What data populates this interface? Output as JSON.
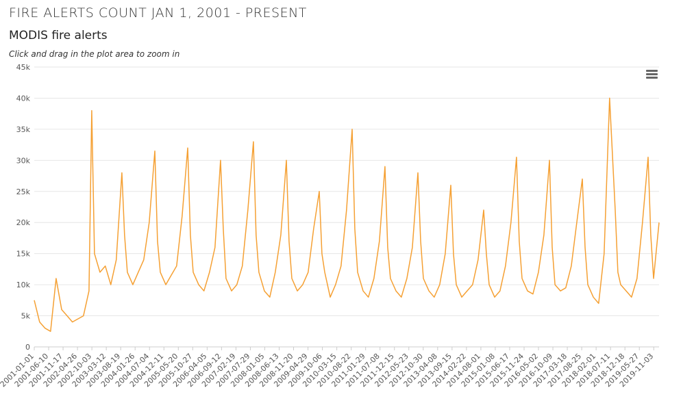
{
  "page": {
    "title": "FIRE ALERTS COUNT JAN 1, 2001 - PRESENT",
    "chart_title": "MODIS fire alerts",
    "hint": "Click and drag in the plot area to zoom in",
    "menu_icon": "hamburger-menu-icon"
  },
  "colors": {
    "series": "#f5a033",
    "grid": "#e6e6e6",
    "axis": "#cccccc",
    "text": "#333333"
  },
  "chart_data": {
    "type": "line",
    "title": "MODIS fire alerts",
    "xlabel": "",
    "ylabel": "",
    "ylim": [
      0,
      45000
    ],
    "y_ticks": [
      "0",
      "5k",
      "10k",
      "15k",
      "20k",
      "25k",
      "30k",
      "35k",
      "40k",
      "45k"
    ],
    "x_tick_labels": [
      "2001-01-01",
      "2001-06-10",
      "2001-11-17",
      "2002-04-26",
      "2002-10-03",
      "2003-03-12",
      "2003-08-19",
      "2004-01-26",
      "2004-07-04",
      "2004-12-11",
      "2005-05-20",
      "2005-10-27",
      "2006-04-05",
      "2006-09-12",
      "2007-02-19",
      "2007-07-29",
      "2008-01-05",
      "2008-06-13",
      "2008-11-20",
      "2009-04-29",
      "2009-10-06",
      "2010-03-15",
      "2010-08-22",
      "2011-01-29",
      "2011-07-08",
      "2011-12-15",
      "2012-05-23",
      "2012-10-30",
      "2013-04-08",
      "2013-09-15",
      "2014-02-22",
      "2014-08-01",
      "2015-01-08",
      "2015-06-17",
      "2015-11-24",
      "2016-05-02",
      "2016-10-09",
      "2017-03-18",
      "2017-08-25",
      "2018-02-01",
      "2018-07-11",
      "2018-12-18",
      "2019-05-27",
      "2019-11-03"
    ],
    "grid": true,
    "legend": "none",
    "series": [
      {
        "x": [
          "2001-01-01",
          "2001-03-01",
          "2001-05-01",
          "2001-07-01",
          "2001-09-01",
          "2001-11-01",
          "2002-01-01",
          "2002-03-01",
          "2002-05-01",
          "2002-07-01",
          "2002-09-01",
          "2002-10-01",
          "2002-11-01",
          "2003-01-01",
          "2003-03-01",
          "2003-05-01",
          "2003-07-01",
          "2003-09-01",
          "2003-10-01",
          "2003-11-01",
          "2004-01-01",
          "2004-03-01",
          "2004-05-01",
          "2004-07-01",
          "2004-09-01",
          "2004-10-01",
          "2004-11-01",
          "2005-01-01",
          "2005-03-01",
          "2005-05-01",
          "2005-07-01",
          "2005-09-01",
          "2005-10-01",
          "2005-11-01",
          "2006-01-01",
          "2006-03-01",
          "2006-05-01",
          "2006-07-01",
          "2006-09-01",
          "2006-10-01",
          "2006-11-01",
          "2007-01-01",
          "2007-03-01",
          "2007-05-01",
          "2007-07-01",
          "2007-09-01",
          "2007-10-01",
          "2007-11-01",
          "2008-01-01",
          "2008-03-01",
          "2008-05-01",
          "2008-07-01",
          "2008-09-01",
          "2008-10-01",
          "2008-11-01",
          "2009-01-01",
          "2009-03-01",
          "2009-05-01",
          "2009-07-01",
          "2009-09-01",
          "2009-10-01",
          "2009-11-01",
          "2010-01-01",
          "2010-03-01",
          "2010-05-01",
          "2010-07-01",
          "2010-09-01",
          "2010-10-01",
          "2010-11-01",
          "2011-01-01",
          "2011-03-01",
          "2011-05-01",
          "2011-07-01",
          "2011-09-01",
          "2011-10-01",
          "2011-11-01",
          "2012-01-01",
          "2012-03-01",
          "2012-05-01",
          "2012-07-01",
          "2012-09-01",
          "2012-10-01",
          "2012-11-01",
          "2013-01-01",
          "2013-03-01",
          "2013-05-01",
          "2013-07-01",
          "2013-09-01",
          "2013-10-01",
          "2013-11-01",
          "2014-01-01",
          "2014-03-01",
          "2014-05-01",
          "2014-07-01",
          "2014-09-01",
          "2014-10-01",
          "2014-11-01",
          "2015-01-01",
          "2015-03-01",
          "2015-05-01",
          "2015-07-01",
          "2015-09-01",
          "2015-10-01",
          "2015-11-01",
          "2016-01-01",
          "2016-03-01",
          "2016-05-01",
          "2016-07-01",
          "2016-09-01",
          "2016-10-01",
          "2016-11-01",
          "2017-01-01",
          "2017-03-01",
          "2017-05-01",
          "2017-07-01",
          "2017-09-01",
          "2017-10-01",
          "2017-11-01",
          "2018-01-01",
          "2018-03-01",
          "2018-05-01",
          "2018-07-01",
          "2018-09-01",
          "2018-10-01",
          "2018-11-01",
          "2019-01-01",
          "2019-03-01",
          "2019-05-01",
          "2019-07-01",
          "2019-09-01",
          "2019-10-01",
          "2019-11-01",
          "2020-01-01"
        ],
        "values": [
          7500,
          4000,
          3000,
          2500,
          11000,
          6000,
          5000,
          4000,
          4500,
          5000,
          9000,
          38000,
          15000,
          12000,
          13000,
          10000,
          14000,
          28000,
          18000,
          12000,
          10000,
          12000,
          14000,
          20000,
          31500,
          17000,
          12000,
          10000,
          11500,
          13000,
          21000,
          32000,
          18000,
          12000,
          10000,
          9000,
          12000,
          16000,
          30000,
          19000,
          11000,
          9000,
          10000,
          13000,
          22000,
          33000,
          18000,
          12000,
          9000,
          8000,
          12000,
          18000,
          30000,
          17000,
          11000,
          9000,
          10000,
          12000,
          19000,
          25000,
          15000,
          12000,
          8000,
          10000,
          13000,
          22000,
          35000,
          19000,
          12000,
          9000,
          8000,
          11000,
          17000,
          29000,
          16000,
          11000,
          9000,
          8000,
          11000,
          16000,
          28000,
          17000,
          11000,
          9000,
          8000,
          10000,
          15000,
          26000,
          15000,
          10000,
          8000,
          9000,
          10000,
          14000,
          22000,
          15000,
          10000,
          8000,
          9000,
          13000,
          20000,
          30500,
          17000,
          11000,
          9000,
          8500,
          12000,
          18000,
          30000,
          16000,
          10000,
          9000,
          9500,
          13000,
          20000,
          27000,
          16000,
          10000,
          8000,
          7000,
          15000,
          40000,
          22000,
          12000,
          10000,
          9000,
          8000,
          11000,
          20000,
          30500,
          18000,
          11000,
          20000
        ]
      }
    ]
  }
}
